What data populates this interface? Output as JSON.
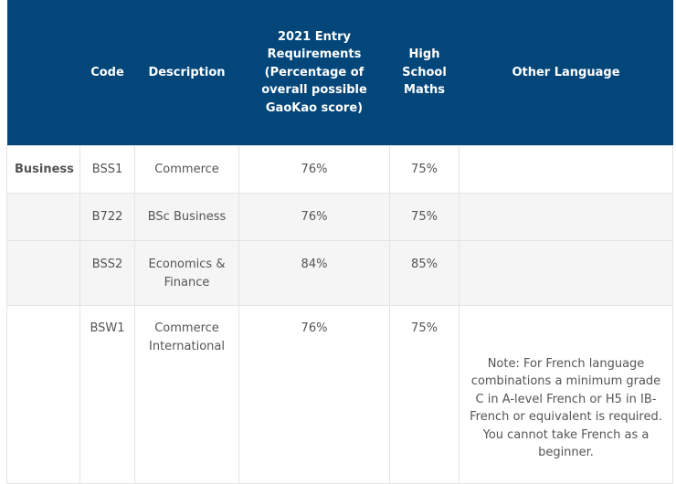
{
  "headers": [
    "",
    "Code",
    "Description",
    "2021 Entry Requirements (Percentage of overall possible GaoKao score)",
    "High School Maths",
    "Other Language"
  ],
  "rows": [
    {
      "faculty": "Business",
      "code": "BSS1",
      "description": "Commerce",
      "gaokao": "76%",
      "maths": "75%",
      "other_language": ""
    },
    {
      "faculty": "",
      "code": "B722",
      "description": "BSc Business",
      "gaokao": "76%",
      "maths": "75%",
      "other_language": ""
    },
    {
      "faculty": "",
      "code": "BSS2",
      "description": "Economics & Finance",
      "gaokao": "84%",
      "maths": "85%",
      "other_language": ""
    },
    {
      "faculty": "",
      "code": "BSW1",
      "description": "Commerce International",
      "gaokao": "76%",
      "maths": "75%",
      "other_language": "Note: For French language combinations a minimum grade C in A-level French or H5 in IB-French or equivalent is required. You cannot take French as a beginner."
    }
  ],
  "colors": {
    "header_bg": "#03467a",
    "header_text": "#ffffff",
    "row_alt_bg": "#f5f5f5",
    "border": "#e4e4e4",
    "body_text": "#555555"
  }
}
